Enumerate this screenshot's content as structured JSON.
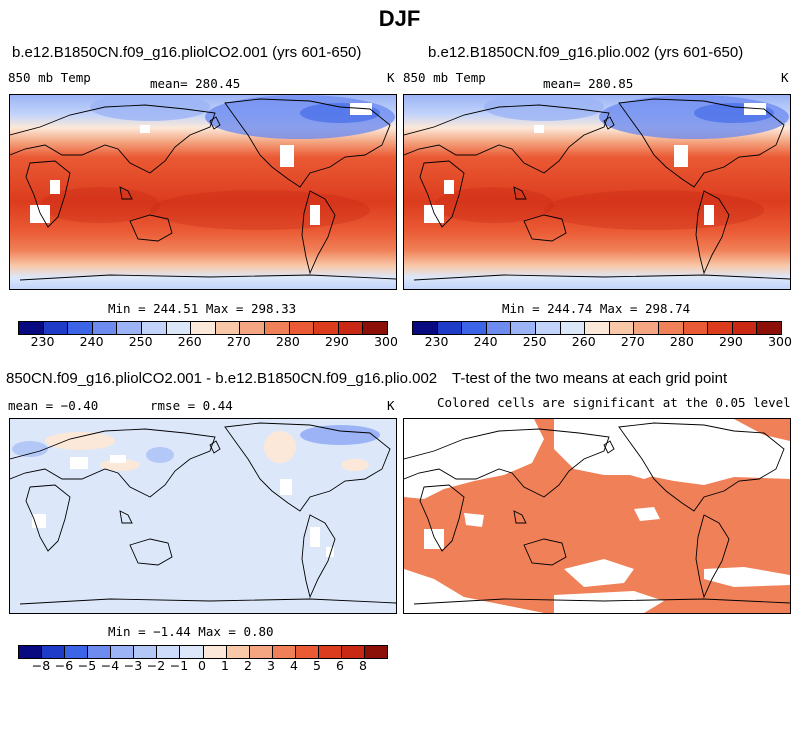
{
  "figure_title": "DJF",
  "panel_top_left": {
    "title": "b.e12.B1850CN.f09_g16.pliolCO2.001 (yrs 601-650)",
    "variable": "850 mb Temp",
    "mean_label": "mean= 280.45",
    "units": "K",
    "minmax": "Min = 244.51 Max = 298.33"
  },
  "panel_top_right": {
    "title": "b.e12.B1850CN.f09_g16.plio.002 (yrs 601-650)",
    "variable": "850 mb Temp",
    "mean_label": "mean= 280.85",
    "units": "K",
    "minmax": "Min = 244.74 Max = 298.74"
  },
  "panel_bottom_left": {
    "title": "850CN.f09_g16.pliolCO2.001 - b.e12.B1850CN.f09_g16.plio.002",
    "mean_label": "mean =  −0.40",
    "rmse_label": "rmse =    0.44",
    "units": "K",
    "minmax": "Min =  −1.44 Max =    0.80"
  },
  "panel_bottom_right": {
    "title": "T-test of the two means at each grid point",
    "subtitle": "Colored cells are significant at the 0.05 level"
  },
  "colorbar_abs": {
    "ticks": [
      "230",
      "240",
      "250",
      "260",
      "270",
      "280",
      "290",
      "300"
    ],
    "colors": [
      "#0a0a80",
      "#1e3cc8",
      "#3c64e6",
      "#6e8cf0",
      "#9cb4f5",
      "#c3d4fa",
      "#dce8fa",
      "#fce8d8",
      "#f8c8a8",
      "#f4a682",
      "#f08058",
      "#ea5a34",
      "#dc3c1e",
      "#c82814",
      "#8c1008"
    ]
  },
  "colorbar_diff": {
    "ticks": [
      "−8",
      "−6",
      "−5",
      "−4",
      "−3",
      "−2",
      "−1",
      "0",
      "1",
      "2",
      "3",
      "4",
      "5",
      "6",
      "8"
    ],
    "colors": [
      "#0a0a80",
      "#1e3cc8",
      "#3c64e6",
      "#6e8cf0",
      "#9cb4f5",
      "#b4c8f8",
      "#cddcfa",
      "#dce8fa",
      "#fce8d8",
      "#f8c8a8",
      "#f4a682",
      "#f08058",
      "#ea5a34",
      "#dc3c1e",
      "#c82814",
      "#8c1008"
    ]
  }
}
